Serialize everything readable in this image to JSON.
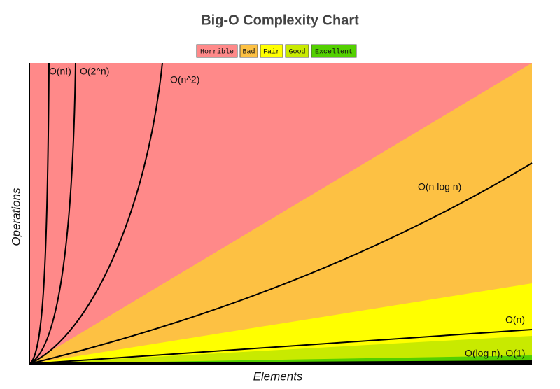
{
  "chart_data": {
    "type": "complexity",
    "title": "Big-O Complexity Chart",
    "x_label": "Elements",
    "y_label": "Operations",
    "legend": [
      {
        "name": "Horrible",
        "color": "#ff8989"
      },
      {
        "name": "Bad",
        "color": "#fdc143"
      },
      {
        "name": "Fair",
        "color": "#ffff00"
      },
      {
        "name": "Good",
        "color": "#c8ea00"
      },
      {
        "name": "Excellent",
        "color": "#53d000"
      }
    ],
    "curves": [
      {
        "label": "O(n!)"
      },
      {
        "label": "O(2^n)"
      },
      {
        "label": "O(n^2)"
      },
      {
        "label": "O(n log n)"
      },
      {
        "label": "O(n)"
      },
      {
        "label": "O(log n), O(1)"
      }
    ]
  }
}
